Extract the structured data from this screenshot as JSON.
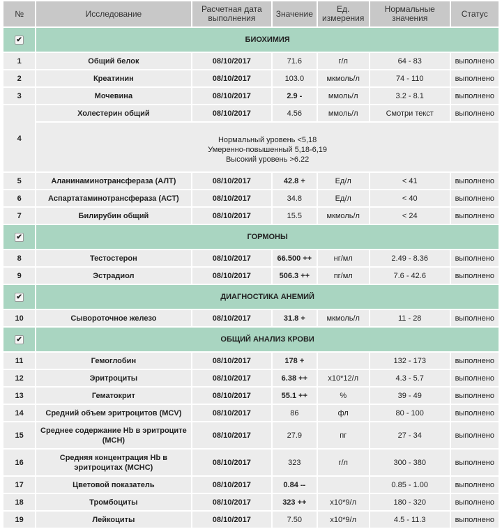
{
  "headers": [
    "№",
    "Исследование",
    "Расчетная дата выполнения",
    "Значение",
    "Ед. измерения",
    "Нормальные значения",
    "Статус"
  ],
  "colors": {
    "header": "#c8c8c8",
    "section": "#a9d5c1",
    "row": "#ececec"
  },
  "sections": [
    {
      "title": "БИОХИМИЯ",
      "checked": true,
      "rows": [
        {
          "n": "1",
          "name": "Общий белок",
          "date": "08/10/2017",
          "value": "71.6",
          "flag": false,
          "unit": "г/л",
          "norm": "64 - 83",
          "status": "выполнено"
        },
        {
          "n": "2",
          "name": "Креатинин",
          "date": "08/10/2017",
          "value": "103.0",
          "flag": false,
          "unit": "мкмоль/л",
          "norm": "74 - 110",
          "status": "выполнено"
        },
        {
          "n": "3",
          "name": "Мочевина",
          "date": "08/10/2017",
          "value": "2.9 -",
          "flag": true,
          "unit": "ммоль/л",
          "norm": "3.2 - 8.1",
          "status": "выполнено"
        },
        {
          "n": "4",
          "name": "Холестерин общий",
          "date": "08/10/2017",
          "value": "4.56",
          "flag": false,
          "unit": "ммоль/л",
          "norm": "Смотри текст",
          "status": "выполнено",
          "note": [
            "Нормальный уровень <5,18",
            "Умеренно-повышенный 5,18-6,19",
            "Высокий уровень >6.22"
          ]
        },
        {
          "n": "5",
          "name": "Аланинаминотрансфераза (АЛТ)",
          "date": "08/10/2017",
          "value": "42.8 +",
          "flag": true,
          "unit": "Ед/л",
          "norm": "< 41",
          "status": "выполнено"
        },
        {
          "n": "6",
          "name": "Аспартатаминотрансфераза (АСТ)",
          "date": "08/10/2017",
          "value": "34.8",
          "flag": false,
          "unit": "Ед/л",
          "norm": "< 40",
          "status": "выполнено"
        },
        {
          "n": "7",
          "name": "Билирубин общий",
          "date": "08/10/2017",
          "value": "15.5",
          "flag": false,
          "unit": "мкмоль/л",
          "norm": "< 24",
          "status": "выполнено"
        }
      ]
    },
    {
      "title": "ГОРМОНЫ",
      "checked": true,
      "rows": [
        {
          "n": "8",
          "name": "Тестостерон",
          "date": "08/10/2017",
          "value": "66.500 ++",
          "flag": true,
          "unit": "нг/мл",
          "norm": "2.49 - 8.36",
          "status": "выполнено"
        },
        {
          "n": "9",
          "name": "Эстрадиол",
          "date": "08/10/2017",
          "value": "506.3 ++",
          "flag": true,
          "unit": "пг/мл",
          "norm": "7.6 - 42.6",
          "status": "выполнено"
        }
      ]
    },
    {
      "title": "ДИАГНОСТИКА АНЕМИЙ",
      "checked": true,
      "rows": [
        {
          "n": "10",
          "name": "Сывороточное железо",
          "date": "08/10/2017",
          "value": "31.8 +",
          "flag": true,
          "unit": "мкмоль/л",
          "norm": "11 - 28",
          "status": "выполнено"
        }
      ]
    },
    {
      "title": "ОБЩИЙ АНАЛИЗ КРОВИ",
      "checked": true,
      "rows": [
        {
          "n": "11",
          "name": "Гемоглобин",
          "date": "08/10/2017",
          "value": "178 +",
          "flag": true,
          "unit": "",
          "norm": "132 - 173",
          "status": "выполнено"
        },
        {
          "n": "12",
          "name": "Эритроциты",
          "date": "08/10/2017",
          "value": "6.38 ++",
          "flag": true,
          "unit": "x10*12/л",
          "norm": "4.3 - 5.7",
          "status": "выполнено"
        },
        {
          "n": "13",
          "name": "Гематокрит",
          "date": "08/10/2017",
          "value": "55.1 ++",
          "flag": true,
          "unit": "%",
          "norm": "39 - 49",
          "status": "выполнено"
        },
        {
          "n": "14",
          "name": "Средний объем эритроцитов (MCV)",
          "date": "08/10/2017",
          "value": "86",
          "flag": false,
          "unit": "фл",
          "norm": "80 - 100",
          "status": "выполнено"
        },
        {
          "n": "15",
          "name": "Среднее содержание Hb в эритроците (MCH)",
          "date": "08/10/2017",
          "value": "27.9",
          "flag": false,
          "unit": "пг",
          "norm": "27 - 34",
          "status": "выполнено",
          "tall": true
        },
        {
          "n": "16",
          "name": "Средняя концентрация Hb в эритроцитах (MCHC)",
          "date": "08/10/2017",
          "value": "323",
          "flag": false,
          "unit": "г/л",
          "norm": "300 - 380",
          "status": "выполнено",
          "tall": true
        },
        {
          "n": "17",
          "name": "Цветовой показатель",
          "date": "08/10/2017",
          "value": "0.84 --",
          "flag": true,
          "unit": "",
          "norm": "0.85 - 1.00",
          "status": "выполнено"
        },
        {
          "n": "18",
          "name": "Тромбоциты",
          "date": "08/10/2017",
          "value": "323 ++",
          "flag": true,
          "unit": "x10*9/л",
          "norm": "180 - 320",
          "status": "выполнено"
        },
        {
          "n": "19",
          "name": "Лейкоциты",
          "date": "08/10/2017",
          "value": "7.50",
          "flag": false,
          "unit": "x10*9/л",
          "norm": "4.5 - 11.3",
          "status": "выполнено"
        }
      ]
    }
  ]
}
